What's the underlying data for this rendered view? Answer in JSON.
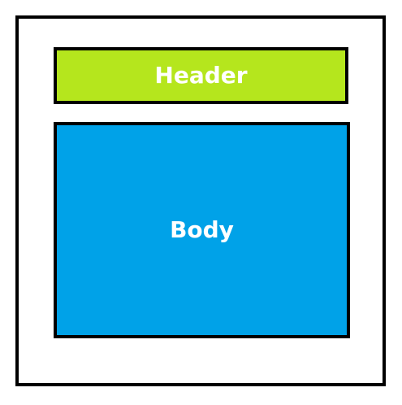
{
  "diagram": {
    "header": {
      "label": "Header",
      "fill_color": "#b5e61d"
    },
    "body": {
      "label": "Body",
      "fill_color": "#00a2e8"
    },
    "frame": {
      "fill_color": "#ffffff",
      "border_color": "#000000"
    }
  }
}
